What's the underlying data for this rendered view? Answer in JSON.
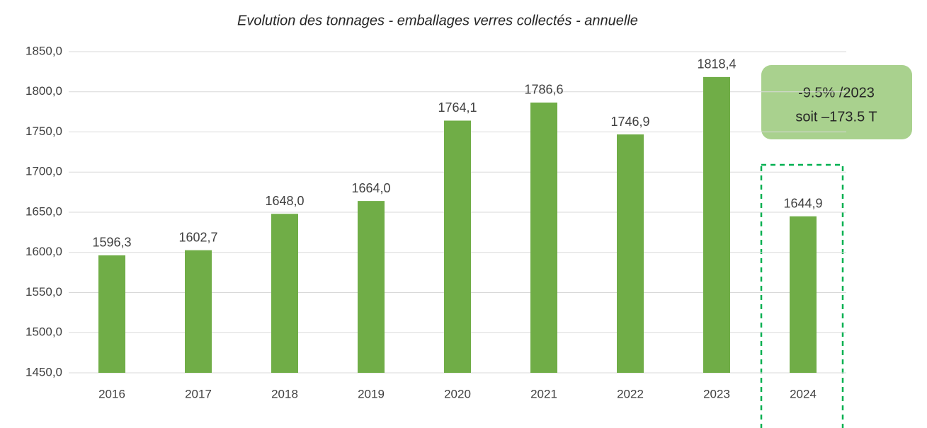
{
  "chart_data": {
    "type": "bar",
    "title": "Evolution des tonnages - emballages verres collectés - annuelle",
    "categories": [
      "2016",
      "2017",
      "2018",
      "2019",
      "2020",
      "2021",
      "2022",
      "2023",
      "2024"
    ],
    "values": [
      1596.3,
      1602.7,
      1648.0,
      1664.0,
      1764.1,
      1786.6,
      1746.9,
      1818.4,
      1644.9
    ],
    "value_labels": [
      "1596,3",
      "1602,7",
      "1648,0",
      "1664,0",
      "1764,1",
      "1786,6",
      "1746,9",
      "1818,4",
      "1644,9"
    ],
    "color": "#70ad47",
    "ylim": [
      1450,
      1850
    ],
    "yticks": [
      {
        "value": 1450,
        "label": "1450,0"
      },
      {
        "value": 1500,
        "label": "1500,0"
      },
      {
        "value": 1550,
        "label": "1550,0"
      },
      {
        "value": 1600,
        "label": "1600,0"
      },
      {
        "value": 1650,
        "label": "1650,0"
      },
      {
        "value": 1700,
        "label": "1700,0"
      },
      {
        "value": 1750,
        "label": "1750,0"
      },
      {
        "value": 1800,
        "label": "1800,0"
      },
      {
        "value": 1850,
        "label": "1850,0"
      }
    ],
    "grid": true,
    "annotation": [
      "-9.5% /2023",
      "soit –173.5 T"
    ]
  }
}
